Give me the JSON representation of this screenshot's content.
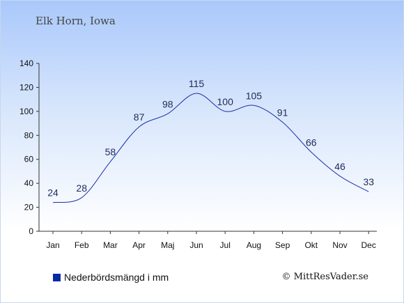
{
  "chart_data": {
    "type": "line",
    "title": "Elk Horn, Iowa",
    "categories": [
      "Jan",
      "Feb",
      "Mar",
      "Apr",
      "Maj",
      "Jun",
      "Jul",
      "Aug",
      "Sep",
      "Okt",
      "Nov",
      "Dec"
    ],
    "series": [
      {
        "name": "Nederbördsmängd i mm",
        "values": [
          24,
          28,
          58,
          87,
          98,
          115,
          100,
          105,
          91,
          66,
          46,
          33
        ],
        "color": "#1a2fa8"
      }
    ],
    "ylim": [
      0,
      140
    ],
    "yticks": [
      0,
      20,
      40,
      60,
      80,
      100,
      120,
      140
    ],
    "grid": false,
    "legend": "bottom-left"
  },
  "legend": {
    "label": "Nederbördsmängd i mm",
    "color": "#0a2aa3"
  },
  "credit": "© MittResVader.se"
}
